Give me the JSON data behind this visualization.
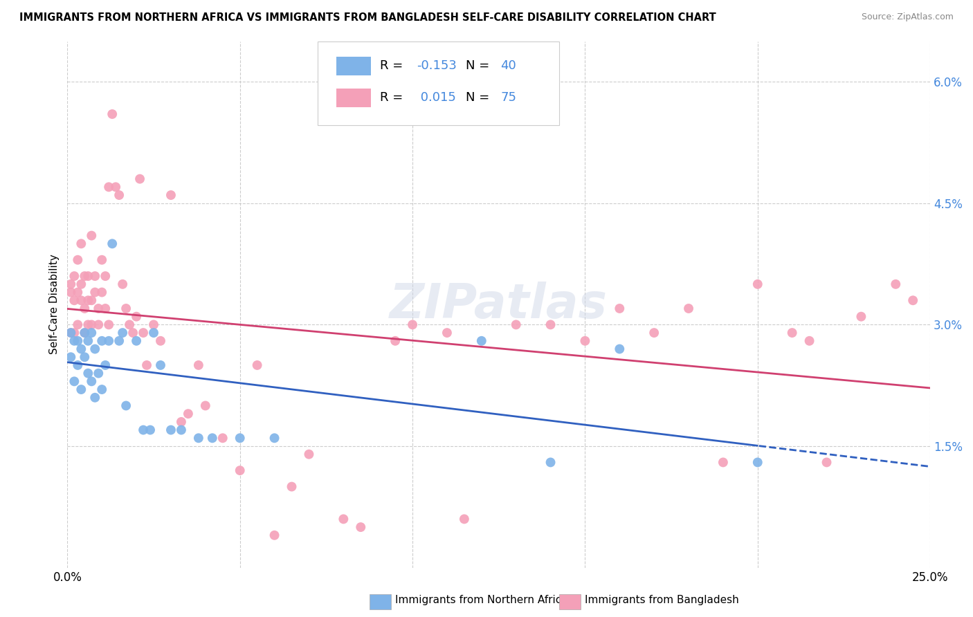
{
  "title": "IMMIGRANTS FROM NORTHERN AFRICA VS IMMIGRANTS FROM BANGLADESH SELF-CARE DISABILITY CORRELATION CHART",
  "source": "Source: ZipAtlas.com",
  "ylabel": "Self-Care Disability",
  "yticks": [
    "1.5%",
    "3.0%",
    "4.5%",
    "6.0%"
  ],
  "ytick_vals": [
    0.015,
    0.03,
    0.045,
    0.06
  ],
  "xlim": [
    0.0,
    0.25
  ],
  "ylim": [
    0.0,
    0.065
  ],
  "legend_blue_r": "-0.153",
  "legend_blue_n": "40",
  "legend_pink_r": "0.015",
  "legend_pink_n": "75",
  "color_blue": "#7fb3e8",
  "color_pink": "#f4a0b8",
  "trendline_blue_color": "#3060c0",
  "trendline_pink_color": "#d04070",
  "watermark": "ZIPatlas",
  "blue_x": [
    0.001,
    0.001,
    0.002,
    0.002,
    0.003,
    0.003,
    0.004,
    0.004,
    0.005,
    0.005,
    0.006,
    0.006,
    0.007,
    0.007,
    0.008,
    0.008,
    0.009,
    0.01,
    0.01,
    0.011,
    0.012,
    0.013,
    0.015,
    0.016,
    0.017,
    0.02,
    0.022,
    0.024,
    0.025,
    0.027,
    0.03,
    0.033,
    0.038,
    0.042,
    0.05,
    0.06,
    0.12,
    0.14,
    0.16,
    0.2
  ],
  "blue_y": [
    0.029,
    0.026,
    0.028,
    0.023,
    0.028,
    0.025,
    0.027,
    0.022,
    0.029,
    0.026,
    0.028,
    0.024,
    0.029,
    0.023,
    0.027,
    0.021,
    0.024,
    0.028,
    0.022,
    0.025,
    0.028,
    0.04,
    0.028,
    0.029,
    0.02,
    0.028,
    0.017,
    0.017,
    0.029,
    0.025,
    0.017,
    0.017,
    0.016,
    0.016,
    0.016,
    0.016,
    0.028,
    0.013,
    0.027,
    0.013
  ],
  "pink_x": [
    0.001,
    0.001,
    0.001,
    0.002,
    0.002,
    0.002,
    0.003,
    0.003,
    0.003,
    0.004,
    0.004,
    0.004,
    0.005,
    0.005,
    0.005,
    0.006,
    0.006,
    0.006,
    0.007,
    0.007,
    0.007,
    0.008,
    0.008,
    0.009,
    0.009,
    0.01,
    0.01,
    0.011,
    0.011,
    0.012,
    0.012,
    0.013,
    0.014,
    0.015,
    0.016,
    0.017,
    0.018,
    0.019,
    0.02,
    0.021,
    0.022,
    0.023,
    0.025,
    0.027,
    0.03,
    0.033,
    0.035,
    0.038,
    0.04,
    0.045,
    0.05,
    0.055,
    0.06,
    0.065,
    0.07,
    0.08,
    0.085,
    0.095,
    0.1,
    0.11,
    0.115,
    0.13,
    0.14,
    0.15,
    0.16,
    0.17,
    0.18,
    0.19,
    0.2,
    0.21,
    0.215,
    0.22,
    0.23,
    0.24,
    0.245
  ],
  "pink_y": [
    0.029,
    0.034,
    0.035,
    0.029,
    0.033,
    0.036,
    0.03,
    0.034,
    0.038,
    0.033,
    0.035,
    0.04,
    0.029,
    0.032,
    0.036,
    0.03,
    0.033,
    0.036,
    0.03,
    0.033,
    0.041,
    0.034,
    0.036,
    0.03,
    0.032,
    0.034,
    0.038,
    0.032,
    0.036,
    0.03,
    0.047,
    0.056,
    0.047,
    0.046,
    0.035,
    0.032,
    0.03,
    0.029,
    0.031,
    0.048,
    0.029,
    0.025,
    0.03,
    0.028,
    0.046,
    0.018,
    0.019,
    0.025,
    0.02,
    0.016,
    0.012,
    0.025,
    0.004,
    0.01,
    0.014,
    0.006,
    0.005,
    0.028,
    0.03,
    0.029,
    0.006,
    0.03,
    0.03,
    0.028,
    0.032,
    0.029,
    0.032,
    0.013,
    0.035,
    0.029,
    0.028,
    0.013,
    0.031,
    0.035,
    0.033
  ]
}
